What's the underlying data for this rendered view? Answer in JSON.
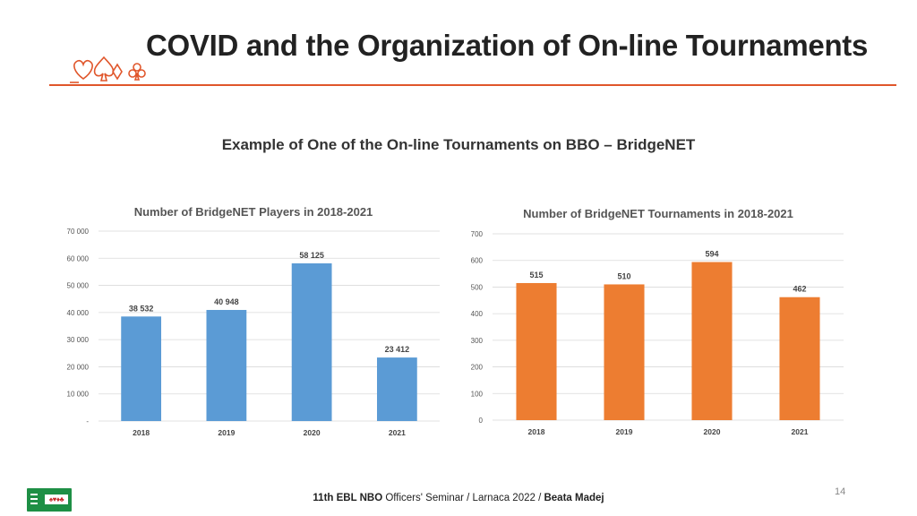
{
  "slide": {
    "title": "COVID and the Organization of On-line Tournaments",
    "subtitle": "Example of One of the On-line Tournaments on BBO – BridgeNET",
    "page_number": "14",
    "footer": {
      "event_bold": "11th EBL NBO",
      "event_rest": " Officers' Seminar / Larnaca 2022 / ",
      "author": "Beata Madej"
    },
    "logo": {
      "suits": "♠♥♦♣"
    },
    "colors": {
      "accent": "#e0562b",
      "blue": "#5b9bd5",
      "orange": "#ed7d31",
      "logo_green": "#1e8f45"
    }
  },
  "chart_data": [
    {
      "type": "bar",
      "title": "Number of BridgeNET Players in 2018-2021",
      "categories": [
        "2018",
        "2019",
        "2020",
        "2021"
      ],
      "values": [
        38532,
        40948,
        58125,
        23412
      ],
      "value_labels": [
        "38 532",
        "40 948",
        "58 125",
        "23 412"
      ],
      "yticks": [
        "-",
        "10 000",
        "20 000",
        "30 000",
        "40 000",
        "50 000",
        "60 000",
        "70 000"
      ],
      "ylim": [
        0,
        70000
      ],
      "color": "#5b9bd5",
      "xlabel": "",
      "ylabel": "",
      "grid": true,
      "legend": "none"
    },
    {
      "type": "bar",
      "title": "Number of BridgeNET Tournaments in 2018-2021",
      "categories": [
        "2018",
        "2019",
        "2020",
        "2021"
      ],
      "values": [
        515,
        510,
        594,
        462
      ],
      "value_labels": [
        "515",
        "510",
        "594",
        "462"
      ],
      "yticks": [
        "0",
        "100",
        "200",
        "300",
        "400",
        "500",
        "600",
        "700"
      ],
      "ylim": [
        0,
        700
      ],
      "color": "#ed7d31",
      "xlabel": "",
      "ylabel": "",
      "grid": true,
      "legend": "none"
    }
  ]
}
